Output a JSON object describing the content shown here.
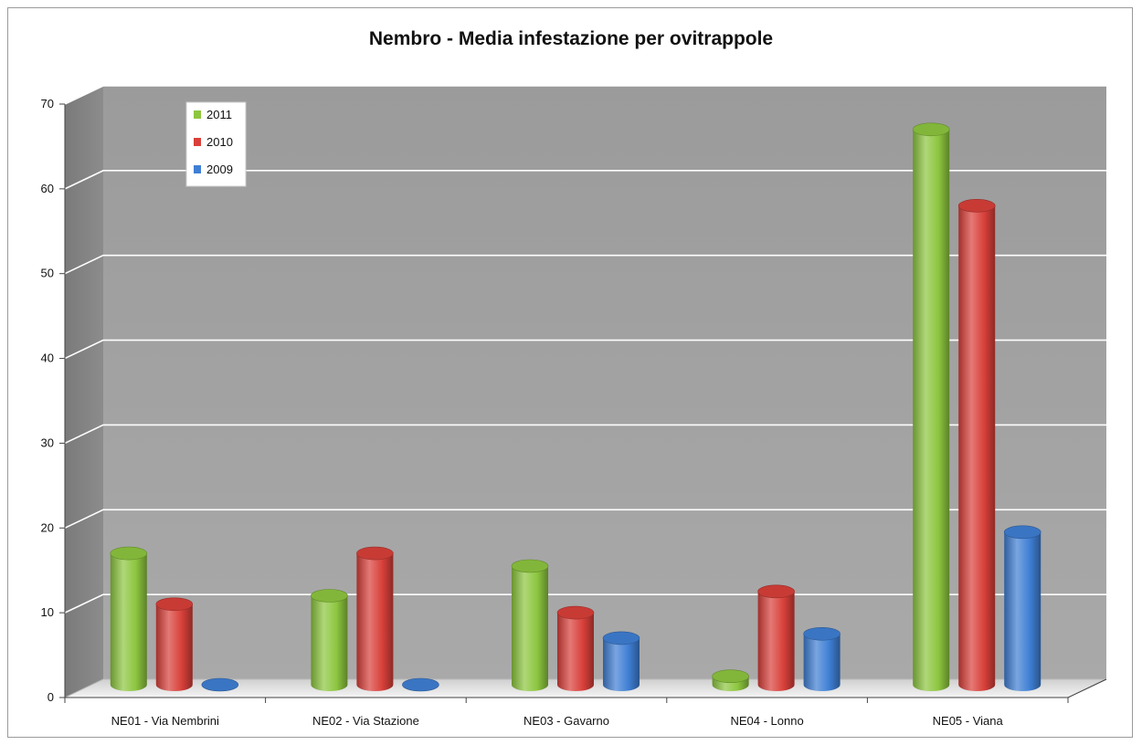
{
  "chart_data": {
    "type": "bar",
    "title": "Nembro - Media infestazione per ovitrappole",
    "xlabel": "",
    "ylabel": "",
    "ylim": [
      0,
      70
    ],
    "yticks": [
      "0",
      "10",
      "20",
      "30",
      "40",
      "50",
      "60",
      "70"
    ],
    "categories": [
      "NE01 - Via Nembrini",
      "NE02 - Via Stazione",
      "NE03 - Gavarno",
      "NE04 - Lonno",
      "NE05 - Viana"
    ],
    "series": [
      {
        "name": "2011",
        "color": "#8DC63F",
        "values": [
          15.5,
          10.5,
          14,
          1,
          65.5
        ]
      },
      {
        "name": "2010",
        "color": "#D9403A",
        "values": [
          9.5,
          15.5,
          8.5,
          11,
          56.5
        ]
      },
      {
        "name": "2009",
        "color": "#3F7FD4",
        "values": [
          0,
          0,
          5.5,
          6,
          18
        ]
      }
    ],
    "grid": true,
    "legend_position": "top-left",
    "style": "3d-cylinder"
  }
}
